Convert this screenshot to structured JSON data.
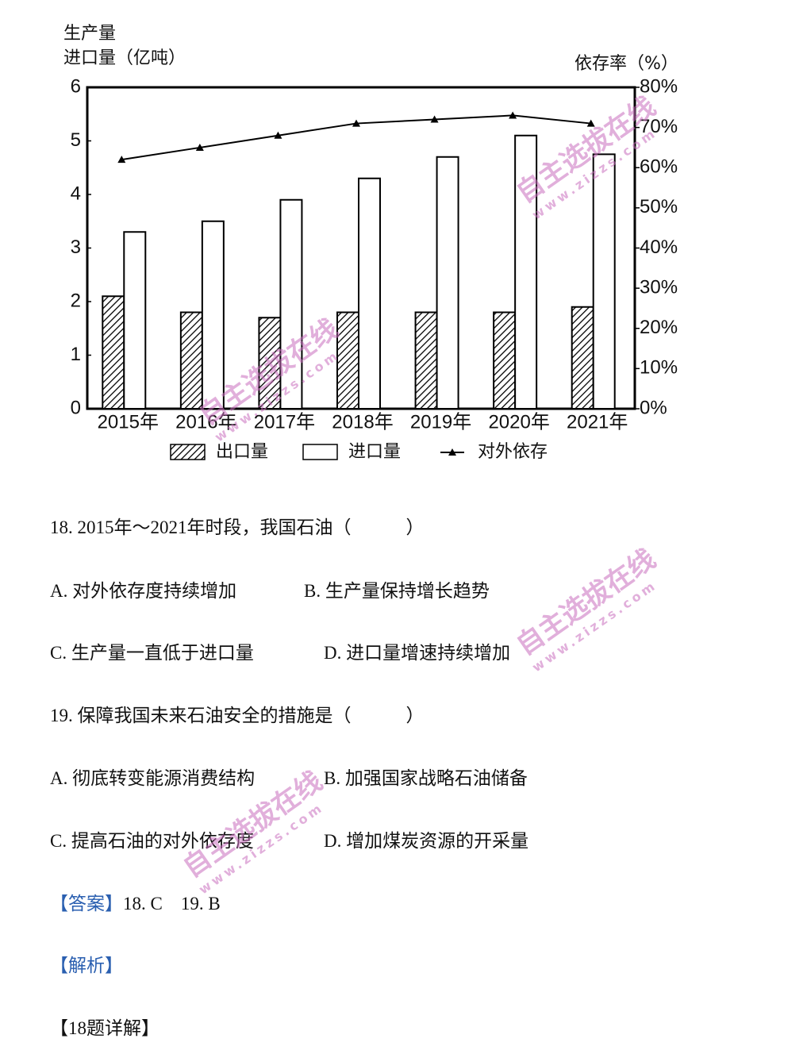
{
  "chart_data": {
    "type": "bar-line",
    "ylabel": [
      "生产量",
      "进口量（亿吨）"
    ],
    "y2label": "依存率（%）",
    "categories": [
      "2015年",
      "2016年",
      "2017年",
      "2018年",
      "2019年",
      "2020年",
      "2021年"
    ],
    "series": [
      {
        "name": "出口量",
        "type": "bar",
        "hatch": true,
        "color": "#000000",
        "values": [
          2.1,
          1.8,
          1.7,
          1.8,
          1.8,
          1.8,
          1.9
        ]
      },
      {
        "name": "进口量",
        "type": "bar",
        "hatch": false,
        "color": "#000000",
        "values": [
          3.3,
          3.5,
          3.9,
          4.3,
          4.7,
          5.1,
          4.75
        ]
      },
      {
        "name": "对外依存",
        "type": "line",
        "axis": "y2",
        "color": "#000000",
        "values": [
          62,
          65,
          68,
          71,
          72,
          73,
          71
        ]
      }
    ],
    "ylim": [
      0,
      6
    ],
    "yticks": [
      0,
      1,
      2,
      3,
      4,
      5,
      6
    ],
    "y2lim": [
      0,
      80
    ],
    "y2ticks": [
      {
        "value": 0,
        "label": "0%"
      },
      {
        "value": 10,
        "label": "10%"
      },
      {
        "value": 20,
        "label": "20%"
      },
      {
        "value": 30,
        "label": "30%"
      },
      {
        "value": 40,
        "label": "40%"
      },
      {
        "value": 50,
        "label": "50%"
      },
      {
        "value": 60,
        "label": "60%"
      },
      {
        "value": 70,
        "label": "70%"
      },
      {
        "value": 80,
        "label": "80%"
      }
    ]
  },
  "questions": [
    {
      "stem": "18. 2015年～2021年时段，我国石油（　　　）",
      "options": [
        "A. 对外依存度持续增加",
        "B. 生产量保持增长趋势",
        "C. 生产量一直低于进口量",
        "D. 进口量增速持续增加"
      ]
    },
    {
      "stem": "19. 保障我国未来石油安全的措施是（　　　）",
      "options": [
        "A. 彻底转变能源消费结构",
        "B. 加强国家战略石油储备",
        "C. 提高石油的对外依存度",
        "D. 增加煤炭资源的开采量"
      ]
    }
  ],
  "answer": {
    "label": "【答案】",
    "text": "18. C　19. B"
  },
  "analysis": "【解析】",
  "detail": "【18题详解】",
  "watermark": {
    "text": "自主选拔在线",
    "url": "www.zizzs.com"
  }
}
